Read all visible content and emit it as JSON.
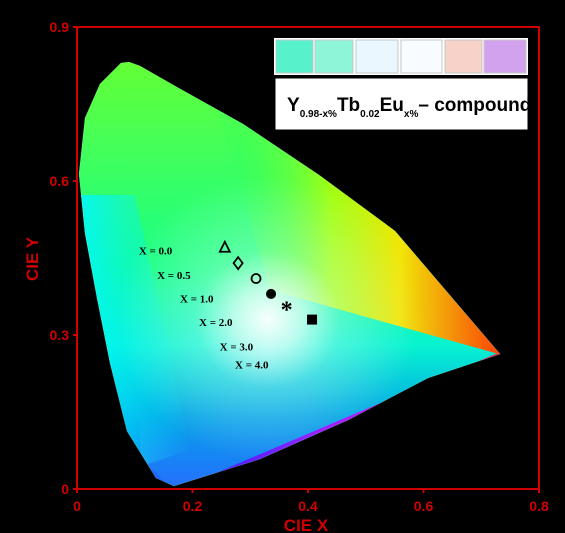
{
  "chart_data": {
    "type": "scatter",
    "chart_title": "",
    "xlabel": "CIE X",
    "ylabel": "CIE Y",
    "xlim": [
      0,
      0.8
    ],
    "ylim": [
      0,
      0.9
    ],
    "xticks": [
      "0",
      "0.2",
      "0.4",
      "0.6",
      "0.8"
    ],
    "yticks": [
      "0",
      "0.3",
      "0.6",
      "0.9"
    ],
    "legend_label": "compound",
    "legend_formula_base": "Y",
    "legend_formula_y_sub": "0.98-x%",
    "legend_formula_tb": "Tb",
    "legend_formula_tb_sub": "0.02",
    "legend_formula_eu": "Eu",
    "legend_formula_eu_sub": "x%",
    "legend_formula_dash": "– compound",
    "photo_swatches": [
      "#57f1cc",
      "#8ff5d8",
      "#eaf7ff",
      "#f8fbff",
      "#f6d2c8",
      "#d2a2ef"
    ],
    "series": [
      {
        "name": "X = 0.0",
        "marker": "triangle-open",
        "x": 0.256,
        "y": 0.47
      },
      {
        "name": "X = 0.5",
        "marker": "diamond-open",
        "x": 0.279,
        "y": 0.44
      },
      {
        "name": "X = 1.0",
        "marker": "circle-open",
        "x": 0.31,
        "y": 0.41
      },
      {
        "name": "X = 2.0",
        "marker": "circle-filled",
        "x": 0.336,
        "y": 0.38
      },
      {
        "name": "X = 3.0",
        "marker": "asterisk",
        "x": 0.363,
        "y": 0.35
      },
      {
        "name": "X = 4.0",
        "marker": "square-filled",
        "x": 0.407,
        "y": 0.33
      }
    ],
    "label_text": [
      "X = 0.0",
      "X = 0.5",
      "X = 1.0",
      "X = 2.0",
      "X = 3.0",
      "X = 4.0"
    ],
    "colors": {
      "frame": "#d10000",
      "background": "#000000",
      "figure_border": "#000000"
    }
  }
}
